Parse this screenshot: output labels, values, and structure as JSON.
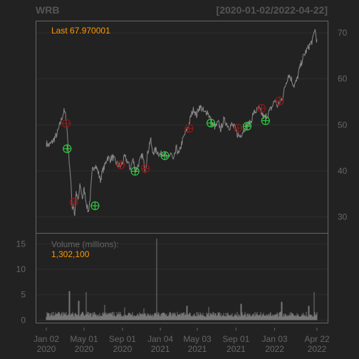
{
  "chart_data": {
    "type": "line",
    "symbol": "WRB",
    "date_range": "[2020-01-02/2022-04-22]",
    "last_label": "Last 67.970001",
    "volume_label": "Volume (millions):",
    "volume_last": "1,302,100",
    "price_ticks": [
      "30",
      "40",
      "50",
      "60",
      "70"
    ],
    "price_ylim": [
      26.5,
      72.5
    ],
    "volume_ticks": [
      "0",
      "5",
      "10",
      "15"
    ],
    "volume_ylim": [
      -0.5,
      17
    ],
    "x_ticks": [
      {
        "line1": "Jan 02",
        "line2": "2020",
        "frac": 0.0
      },
      {
        "line1": "May 01",
        "line2": "2020",
        "frac": 0.1395
      },
      {
        "line1": "Sep 01",
        "line2": "2020",
        "frac": 0.2814
      },
      {
        "line1": "Jan 04",
        "line2": "2021",
        "frac": 0.4213
      },
      {
        "line1": "May 03",
        "line2": "2021",
        "frac": 0.5579
      },
      {
        "line1": "Sep 01",
        "line2": "2021",
        "frac": 0.701
      },
      {
        "line1": "Jan 03",
        "line2": "2022",
        "frac": 0.8436
      },
      {
        "line1": "Apr 22",
        "line2": "2022",
        "frac": 1.0
      }
    ],
    "price_path": [
      [
        0.0,
        46.0
      ],
      [
        0.01,
        45.5
      ],
      [
        0.025,
        46.5
      ],
      [
        0.04,
        48.0
      ],
      [
        0.055,
        51.0
      ],
      [
        0.065,
        53.0
      ],
      [
        0.072,
        52.0
      ],
      [
        0.078,
        48.0
      ],
      [
        0.082,
        44.0
      ],
      [
        0.088,
        40.0
      ],
      [
        0.092,
        36.0
      ],
      [
        0.096,
        31.5
      ],
      [
        0.1,
        33.0
      ],
      [
        0.105,
        30.0
      ],
      [
        0.11,
        35.0
      ],
      [
        0.118,
        33.5
      ],
      [
        0.125,
        37.0
      ],
      [
        0.133,
        34.0
      ],
      [
        0.14,
        36.0
      ],
      [
        0.148,
        33.0
      ],
      [
        0.155,
        31.0
      ],
      [
        0.162,
        34.0
      ],
      [
        0.17,
        40.0
      ],
      [
        0.18,
        41.5
      ],
      [
        0.19,
        40.0
      ],
      [
        0.2,
        38.0
      ],
      [
        0.208,
        40.0
      ],
      [
        0.216,
        41.0
      ],
      [
        0.225,
        43.0
      ],
      [
        0.235,
        42.5
      ],
      [
        0.245,
        43.0
      ],
      [
        0.26,
        41.5
      ],
      [
        0.275,
        41.0
      ],
      [
        0.29,
        43.0
      ],
      [
        0.3,
        42.0
      ],
      [
        0.31,
        40.5
      ],
      [
        0.32,
        42.5
      ],
      [
        0.33,
        40.0
      ],
      [
        0.345,
        42.0
      ],
      [
        0.355,
        43.5
      ],
      [
        0.365,
        40.0
      ],
      [
        0.375,
        44.0
      ],
      [
        0.385,
        47.0
      ],
      [
        0.392,
        44.0
      ],
      [
        0.405,
        44.5
      ],
      [
        0.42,
        43.5
      ],
      [
        0.435,
        44.0
      ],
      [
        0.448,
        42.5
      ],
      [
        0.46,
        44.0
      ],
      [
        0.47,
        42.0
      ],
      [
        0.48,
        45.0
      ],
      [
        0.49,
        43.5
      ],
      [
        0.5,
        46.0
      ],
      [
        0.512,
        48.0
      ],
      [
        0.524,
        49.5
      ],
      [
        0.535,
        52.0
      ],
      [
        0.545,
        53.5
      ],
      [
        0.555,
        52.0
      ],
      [
        0.565,
        54.0
      ],
      [
        0.575,
        53.5
      ],
      [
        0.585,
        52.5
      ],
      [
        0.595,
        53.0
      ],
      [
        0.605,
        51.5
      ],
      [
        0.615,
        50.0
      ],
      [
        0.625,
        49.5
      ],
      [
        0.635,
        50.5
      ],
      [
        0.645,
        49.0
      ],
      [
        0.655,
        51.0
      ],
      [
        0.665,
        50.5
      ],
      [
        0.675,
        49.5
      ],
      [
        0.685,
        50.0
      ],
      [
        0.695,
        49.5
      ],
      [
        0.705,
        48.0
      ],
      [
        0.715,
        47.5
      ],
      [
        0.725,
        48.5
      ],
      [
        0.735,
        49.5
      ],
      [
        0.745,
        50.0
      ],
      [
        0.755,
        50.5
      ],
      [
        0.765,
        52.5
      ],
      [
        0.775,
        53.0
      ],
      [
        0.785,
        53.5
      ],
      [
        0.795,
        52.5
      ],
      [
        0.805,
        51.5
      ],
      [
        0.815,
        52.0
      ],
      [
        0.825,
        53.0
      ],
      [
        0.835,
        54.0
      ],
      [
        0.845,
        55.5
      ],
      [
        0.855,
        54.0
      ],
      [
        0.865,
        55.0
      ],
      [
        0.875,
        56.5
      ],
      [
        0.885,
        59.0
      ],
      [
        0.895,
        61.0
      ],
      [
        0.905,
        60.0
      ],
      [
        0.915,
        58.5
      ],
      [
        0.925,
        59.5
      ],
      [
        0.935,
        62.0
      ],
      [
        0.945,
        64.0
      ],
      [
        0.955,
        65.5
      ],
      [
        0.965,
        66.5
      ],
      [
        0.975,
        67.5
      ],
      [
        0.985,
        68.5
      ],
      [
        0.992,
        71.0
      ],
      [
        1.0,
        68.0
      ]
    ],
    "markers_red": [
      [
        0.074,
        50.3
      ],
      [
        0.102,
        33.2
      ],
      [
        0.275,
        41.3
      ],
      [
        0.366,
        40.5
      ],
      [
        0.527,
        49.2
      ],
      [
        0.708,
        49.3
      ],
      [
        0.795,
        53.6
      ],
      [
        0.862,
        55.2
      ]
    ],
    "markers_green": [
      [
        0.077,
        44.8
      ],
      [
        0.18,
        32.4
      ],
      [
        0.328,
        39.9
      ],
      [
        0.438,
        43.3
      ],
      [
        0.608,
        50.4
      ],
      [
        0.742,
        49.7
      ],
      [
        0.81,
        50.9
      ]
    ],
    "volume_base": 1.1,
    "volume_spikes": [
      [
        0.086,
        5.7
      ],
      [
        0.12,
        3.8
      ],
      [
        0.148,
        5.5
      ],
      [
        0.215,
        3.0
      ],
      [
        0.29,
        2.5
      ],
      [
        0.36,
        2.3
      ],
      [
        0.408,
        16.0
      ],
      [
        0.52,
        2.8
      ],
      [
        0.6,
        2.6
      ],
      [
        0.72,
        3.2
      ],
      [
        0.87,
        3.6
      ],
      [
        0.97,
        2.8
      ],
      [
        0.99,
        5.5
      ]
    ]
  }
}
